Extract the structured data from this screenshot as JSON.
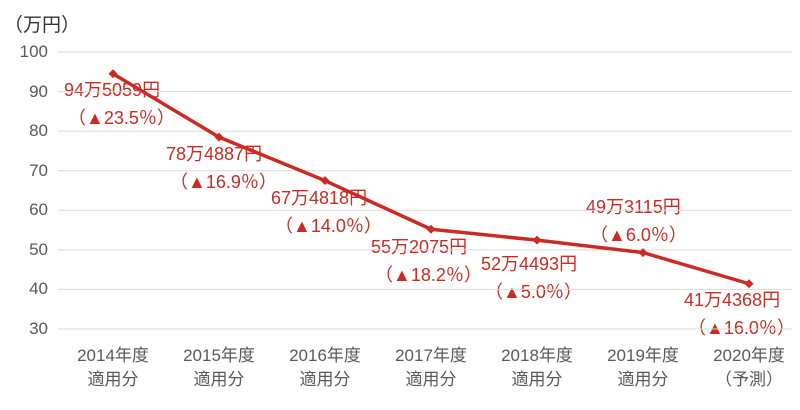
{
  "colors": {
    "series": "#CC2B24",
    "gridline": "#D9D9D9",
    "tick_text": "#595959",
    "axis_title_text": "#333333",
    "background": "#FFFFFF"
  },
  "chart_data": {
    "type": "line",
    "title": "",
    "ylabel": "（万円）",
    "xlabel": "",
    "unit": "万円",
    "ylim": [
      30,
      100
    ],
    "grid": true,
    "legend": false,
    "y_ticks": [
      100,
      90,
      80,
      70,
      60,
      50,
      40,
      30
    ],
    "categories": [
      "2014年度 適用分",
      "2015年度 適用分",
      "2016年度 適用分",
      "2017年度 適用分",
      "2018年度 適用分",
      "2019年度 適用分",
      "2020年度（予測）"
    ],
    "x_labels": [
      {
        "line1": "2014年度",
        "line2": "適用分"
      },
      {
        "line1": "2015年度",
        "line2": "適用分"
      },
      {
        "line1": "2016年度",
        "line2": "適用分"
      },
      {
        "line1": "2017年度",
        "line2": "適用分"
      },
      {
        "line1": "2018年度",
        "line2": "適用分"
      },
      {
        "line1": "2019年度",
        "line2": "適用分"
      },
      {
        "line1": "2020年度",
        "line2": "（予測）"
      }
    ],
    "values": [
      94.5059,
      78.4887,
      67.4818,
      55.2075,
      52.4493,
      49.3115,
      41.4368
    ],
    "pct_change": [
      -23.5,
      -16.9,
      -14.0,
      -18.2,
      -5.0,
      -6.0,
      -16.0
    ],
    "points": [
      {
        "value_label": "94万5059円",
        "pct_label": "（▲23.5％）"
      },
      {
        "value_label": "78万4887円",
        "pct_label": "（▲16.9％）"
      },
      {
        "value_label": "67万4818円",
        "pct_label": "（▲14.0％）"
      },
      {
        "value_label": "55万2075円",
        "pct_label": "（▲18.2％）"
      },
      {
        "value_label": "52万4493円",
        "pct_label": "（▲5.0％）"
      },
      {
        "value_label": "49万3115円",
        "pct_label": "（▲6.0％）"
      },
      {
        "value_label": "41万4368円",
        "pct_label": "（▲16.0％）"
      }
    ]
  }
}
